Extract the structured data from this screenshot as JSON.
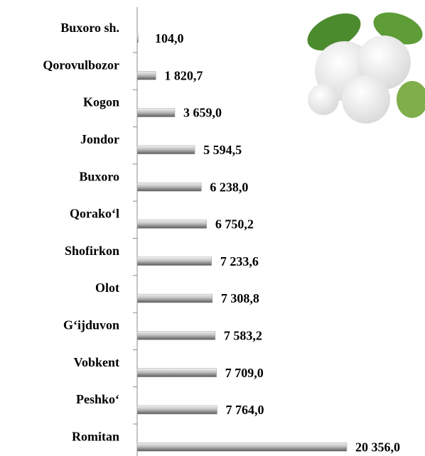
{
  "chart_data": {
    "type": "bar",
    "orientation": "horizontal",
    "categories": [
      "Buxoro sh.",
      "Qorovulbozor",
      "Kogon",
      "Jondor",
      "Buxoro",
      "Qorako‘l",
      "Shofirkon",
      "Olot",
      "G‘ijduvon",
      "Vobkent",
      "Peshko‘",
      "Romitan"
    ],
    "values": [
      104.0,
      1820.7,
      3659.0,
      5594.5,
      6238.0,
      6750.2,
      7233.6,
      7308.8,
      7583.2,
      7709.0,
      7764.0,
      20356.0
    ],
    "value_labels": [
      "104,0",
      "1 820,7",
      "3 659,0",
      "5 594,5",
      "6 238,0",
      "6 750,2",
      "7 233,6",
      "7 308,8",
      "7 583,2",
      "7 709,0",
      "7 764,0",
      "20 356,0"
    ],
    "color": "#a6a6a6"
  }
}
